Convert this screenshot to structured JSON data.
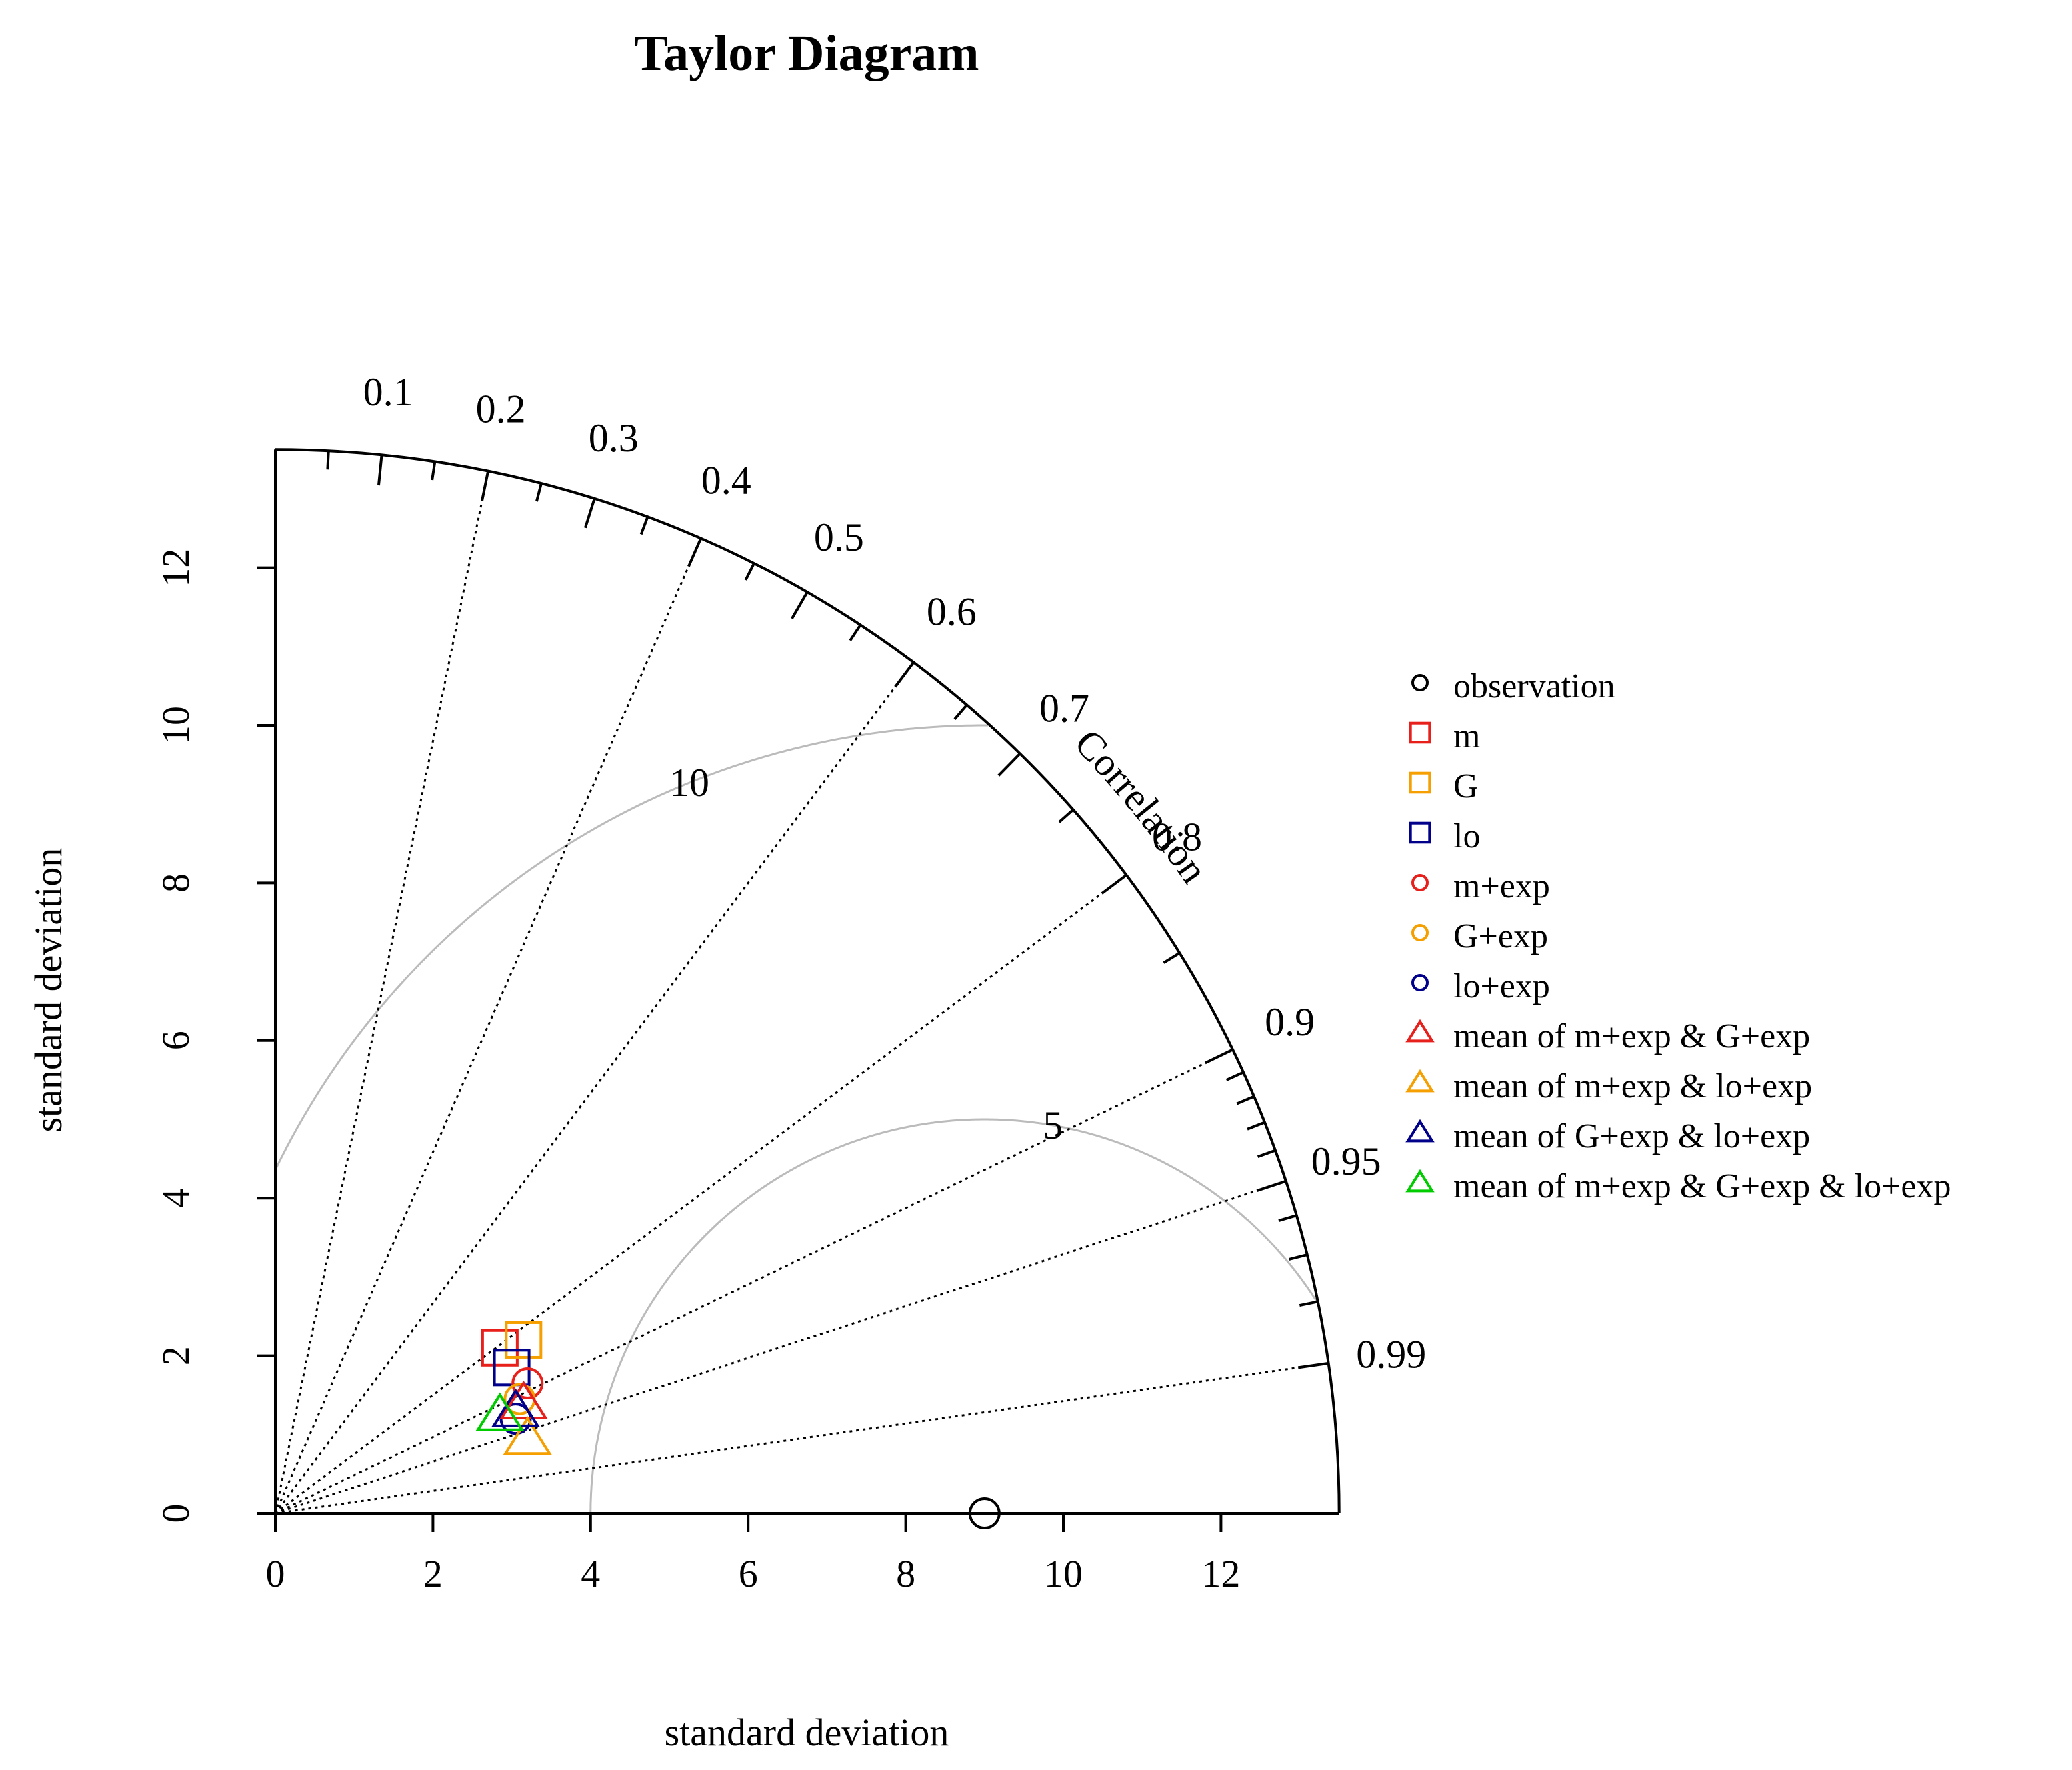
{
  "chart_data": {
    "type": "scatter",
    "subtype": "taylor-diagram",
    "title": "Taylor Diagram",
    "xlabel": "standard deviation",
    "ylabel": "standard deviation",
    "corr_axis_label": "Correlation",
    "sd_max": 13.5,
    "xlim": [
      0,
      13.5
    ],
    "ylim": [
      0,
      13.5
    ],
    "x_ticks": [
      0,
      2,
      4,
      6,
      8,
      10,
      12
    ],
    "y_ticks": [
      0,
      2,
      4,
      6,
      8,
      10,
      12
    ],
    "correlation_ticks": [
      0.1,
      0.2,
      0.3,
      0.4,
      0.5,
      0.6,
      0.7,
      0.8,
      0.9,
      0.95,
      0.99
    ],
    "correlation_tick_labels": [
      "0.1",
      "0.2",
      "0.3",
      "0.4",
      "0.5",
      "0.6",
      "0.7",
      "0.8",
      "0.9",
      "0.95",
      "0.99"
    ],
    "correlation_minor_ticks": [
      0.05,
      0.15,
      0.25,
      0.35,
      0.45,
      0.55,
      0.65,
      0.75,
      0.85,
      0.91,
      0.92,
      0.93,
      0.94,
      0.96,
      0.97,
      0.98
    ],
    "correlation_radial_lines": [
      0.2,
      0.4,
      0.6,
      0.8,
      0.9,
      0.95,
      0.99
    ],
    "rms_contours": [
      {
        "value": 5,
        "label": "5",
        "label_angle_deg": 80
      },
      {
        "value": 10,
        "label": "10",
        "label_angle_deg": 112
      }
    ],
    "observation": {
      "name": "observation",
      "sd": 9,
      "color": "#000000"
    },
    "points": [
      {
        "name": "m",
        "symbol": "square",
        "color": "#e8201c",
        "x": 2.85,
        "y": 2.1
      },
      {
        "name": "G",
        "symbol": "square",
        "color": "#f5a000",
        "x": 3.15,
        "y": 2.2
      },
      {
        "name": "lo",
        "symbol": "square",
        "color": "#00008b",
        "x": 3.0,
        "y": 1.85
      },
      {
        "name": "m+exp",
        "symbol": "circle",
        "color": "#e8201c",
        "x": 3.2,
        "y": 1.65
      },
      {
        "name": "G+exp",
        "symbol": "circle",
        "color": "#f5a000",
        "x": 3.1,
        "y": 1.45
      },
      {
        "name": "lo+exp",
        "symbol": "circle",
        "color": "#00008b",
        "x": 3.05,
        "y": 1.2
      },
      {
        "name": "mean of m+exp &  G+exp",
        "symbol": "triangle",
        "color": "#e8201c",
        "x": 3.15,
        "y": 1.4
      },
      {
        "name": " mean of m+exp &  lo+exp",
        "symbol": "triangle",
        "color": "#f5a000",
        "x": 3.2,
        "y": 0.95
      },
      {
        "name": " mean of G+exp &  lo+exp",
        "symbol": "triangle",
        "color": "#00008b",
        "x": 3.05,
        "y": 1.3
      },
      {
        "name": " mean of m+exp &  G+exp & lo+exp",
        "symbol": "triangle",
        "color": "#00cc00",
        "x": 2.85,
        "y": 1.25
      }
    ],
    "legend": {
      "position": "right",
      "entries": [
        {
          "label": "observation",
          "symbol": "circle",
          "color": "#000000"
        },
        {
          "label": "m",
          "symbol": "square",
          "color": "#e8201c"
        },
        {
          "label": "G",
          "symbol": "square",
          "color": "#f5a000"
        },
        {
          "label": "lo",
          "symbol": "square",
          "color": "#00008b"
        },
        {
          "label": "m+exp",
          "symbol": "circle",
          "color": "#e8201c"
        },
        {
          "label": "G+exp",
          "symbol": "circle",
          "color": "#f5a000"
        },
        {
          "label": "lo+exp",
          "symbol": "circle",
          "color": "#00008b"
        },
        {
          "label": "mean of m+exp &  G+exp",
          "symbol": "triangle",
          "color": "#e8201c"
        },
        {
          "label": " mean of m+exp &  lo+exp",
          "symbol": "triangle",
          "color": "#f5a000"
        },
        {
          "label": " mean of G+exp &  lo+exp",
          "symbol": "triangle",
          "color": "#00008b"
        },
        {
          "label": " mean of m+exp &  G+exp & lo+exp",
          "symbol": "triangle",
          "color": "#00cc00"
        }
      ]
    },
    "grid": false,
    "colors": {
      "rms_contour": "#bbbbbb",
      "axis": "#000000"
    }
  }
}
